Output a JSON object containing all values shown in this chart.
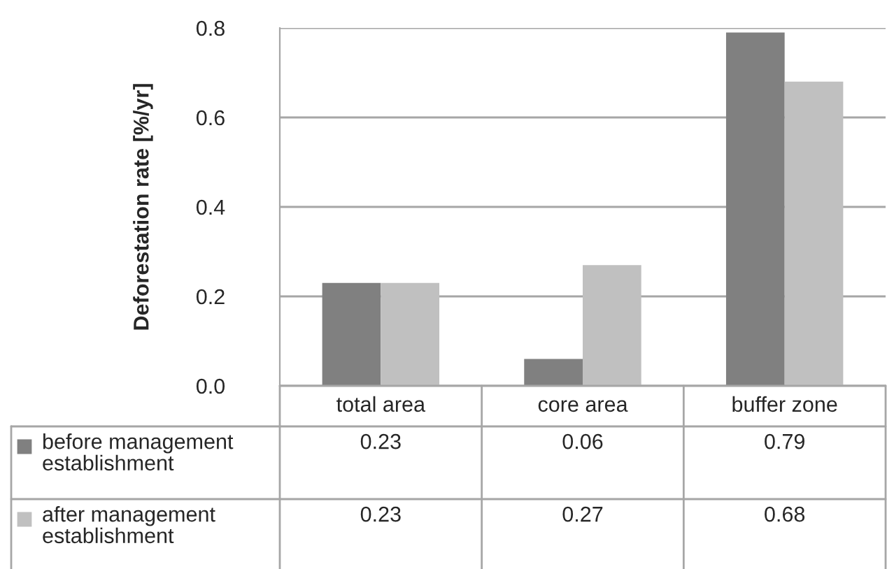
{
  "chart_data": {
    "type": "bar",
    "ylabel": "Deforestation rate [%/yr]",
    "categories": [
      "total area",
      "core area",
      "buffer zone"
    ],
    "series": [
      {
        "name": "before management establishment",
        "color": "#808080",
        "values": [
          0.23,
          0.06,
          0.79
        ]
      },
      {
        "name": "after management establishment",
        "color": "#c0c0c0",
        "values": [
          0.23,
          0.27,
          0.68
        ]
      }
    ],
    "ylim": [
      0,
      0.8
    ],
    "yticks": [
      {
        "value": 0,
        "label": "0.0"
      },
      {
        "value": 0.2,
        "label": "0.2"
      },
      {
        "value": 0.4,
        "label": "0.4"
      },
      {
        "value": 0.6,
        "label": "0.6"
      },
      {
        "value": 0.8,
        "label": "0.8"
      }
    ],
    "grid": "y",
    "data_labels": true,
    "legend": "bottom"
  }
}
